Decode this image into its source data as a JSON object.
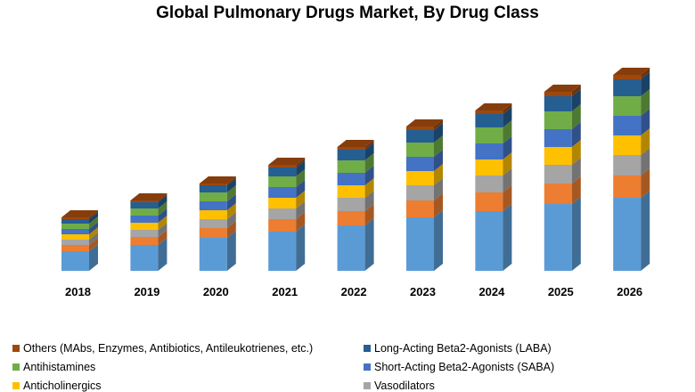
{
  "chart_data": {
    "type": "bar",
    "stacked": true,
    "style": "3d-column",
    "title": "Global Pulmonary Drugs Market, By Drug Class",
    "xlabel": "",
    "ylabel": "",
    "y_axis_shown": false,
    "grid": false,
    "legend_position": "bottom",
    "categories": [
      "2018",
      "2019",
      "2020",
      "2021",
      "2022",
      "2023",
      "2024",
      "2025",
      "2026"
    ],
    "series": [
      {
        "color": "#5b9bd5",
        "values": [
          22,
          29,
          37,
          44,
          51,
          60,
          67,
          75,
          82
        ]
      },
      {
        "color": "#ed7d31",
        "values": [
          7,
          9,
          11,
          14,
          16,
          19,
          21,
          23,
          25
        ]
      },
      {
        "name": "Vasodilators",
        "color": "#a5a5a5",
        "values": [
          6,
          8,
          10,
          12,
          15,
          17,
          19,
          21,
          23
        ]
      },
      {
        "name": "Anticholinergics",
        "color": "#ffc000",
        "values": [
          6,
          8,
          10,
          12,
          14,
          16,
          18,
          20,
          22
        ]
      },
      {
        "name": "Short-Acting Beta2-Agonists (SABA)",
        "color": "#4472c4",
        "values": [
          6,
          8,
          10,
          12,
          14,
          16,
          18,
          20,
          22
        ]
      },
      {
        "name": "Antihistamines",
        "color": "#70ad47",
        "values": [
          6,
          8,
          10,
          12,
          14,
          16,
          18,
          20,
          22
        ]
      },
      {
        "name": "Long-Acting Beta2-Agonists (LABA)",
        "color": "#255e91",
        "values": [
          5,
          7,
          8,
          10,
          12,
          14,
          15,
          17,
          19
        ]
      },
      {
        "name": "Others (MAbs, Enzymes, Antibiotics, Antileukotrienes, etc.)",
        "color": "#9e480e",
        "values": [
          2,
          2,
          2,
          3,
          3,
          4,
          4,
          5,
          5
        ]
      }
    ],
    "legend_order": [
      7,
      6,
      5,
      4,
      3,
      2
    ]
  }
}
